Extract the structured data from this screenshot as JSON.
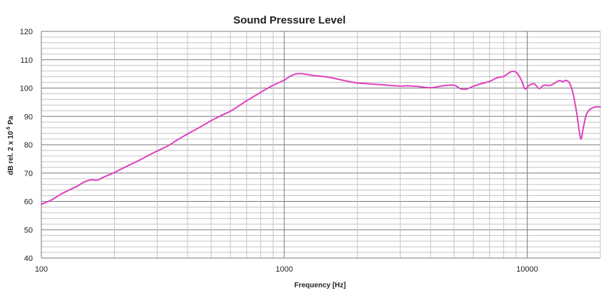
{
  "chart_data": {
    "type": "line",
    "title": "Sound Pressure Level",
    "xlabel": "Frequency [Hz]",
    "ylabel": {
      "prefix": "dB rel. 2 x 10",
      "superscript": "-5",
      "suffix": " Pa"
    },
    "xscale": "log",
    "xlim": [
      100,
      20000
    ],
    "ylim": [
      40,
      120
    ],
    "x_tick_labels": [
      "100",
      "1000",
      "10000"
    ],
    "y_tick_labels": [
      "40",
      "50",
      "60",
      "70",
      "80",
      "90",
      "100",
      "110",
      "120"
    ],
    "grid": true,
    "line_color": "#e040c0",
    "series": [
      {
        "x": [
          100,
          110,
          120,
          130,
          140,
          150,
          160,
          170,
          180,
          200,
          220,
          250,
          280,
          300,
          330,
          360,
          400,
          450,
          500,
          550,
          600,
          650,
          700,
          800,
          900,
          1000,
          1050,
          1100,
          1150,
          1200,
          1300,
          1500,
          1800,
          2000,
          2500,
          3000,
          3200,
          3500,
          4000,
          4500,
          5000,
          5300,
          5600,
          6000,
          6500,
          7000,
          7500,
          8000,
          8500,
          8800,
          9100,
          9500,
          9800,
          10200,
          10700,
          11200,
          11700,
          12500,
          13500,
          14000,
          14500,
          15000,
          15500,
          16000,
          16600,
          17000,
          17500,
          18000,
          18600,
          19300,
          20000
        ],
        "y": [
          59,
          60.5,
          62.5,
          64,
          65.3,
          66.8,
          67.6,
          67.5,
          68.5,
          70.2,
          72,
          74.3,
          76.5,
          77.8,
          79.5,
          81.5,
          83.8,
          86.2,
          88.5,
          90.3,
          91.8,
          93.7,
          95.5,
          98.5,
          101,
          102.8,
          104,
          104.8,
          105.1,
          105,
          104.5,
          103.9,
          102.5,
          101.8,
          101.2,
          100.7,
          100.8,
          100.6,
          100.1,
          100.8,
          101,
          99.8,
          99.6,
          100.6,
          101.6,
          102.3,
          103.6,
          104.1,
          105.6,
          105.9,
          105.2,
          102.5,
          99.7,
          101,
          101.5,
          99.8,
          101,
          101,
          102.6,
          102.3,
          102.7,
          101.5,
          97.5,
          91,
          82.2,
          85.8,
          90.5,
          92.2,
          93,
          93.4,
          93.3
        ]
      }
    ]
  }
}
